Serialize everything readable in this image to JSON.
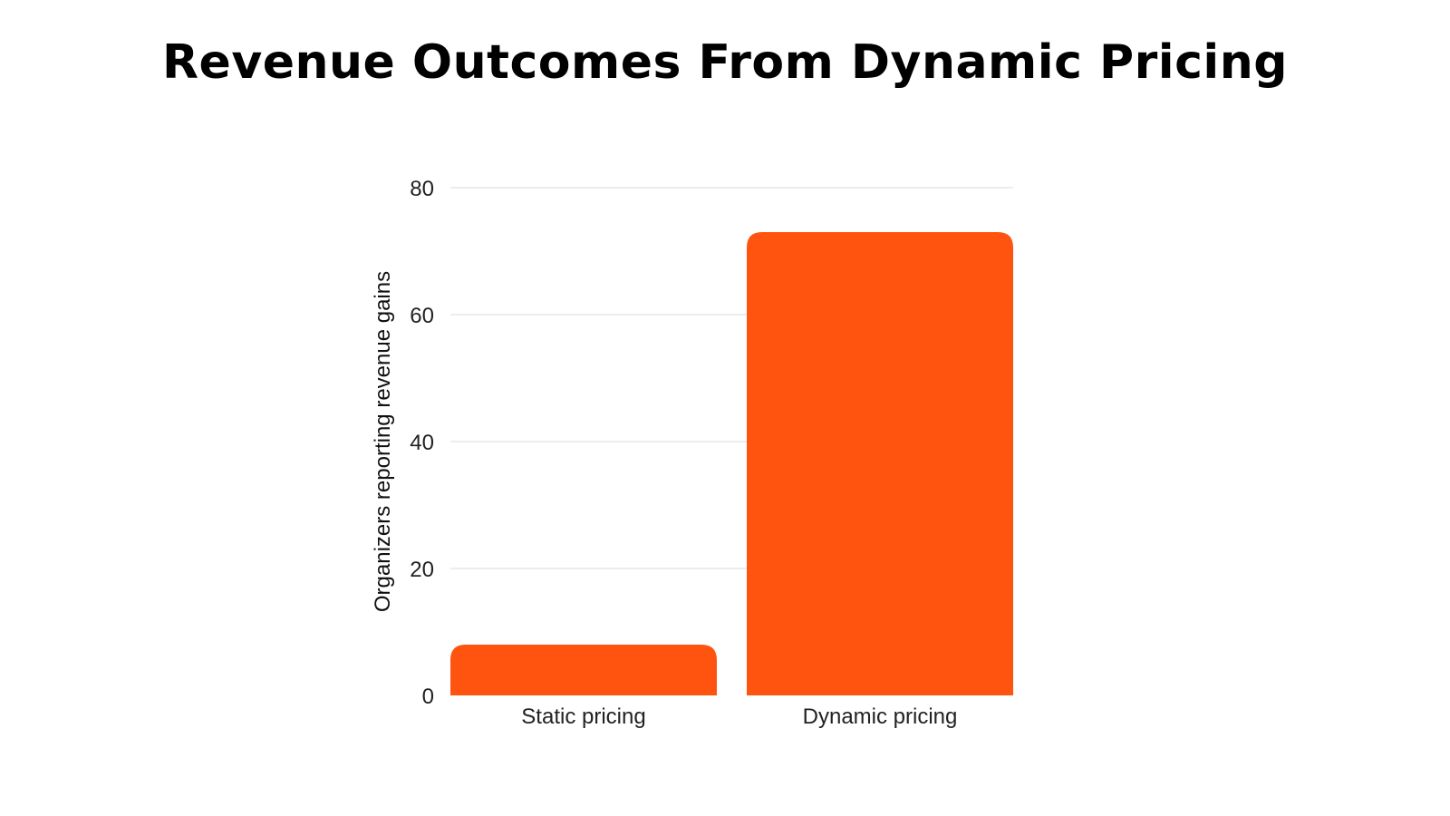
{
  "chart_data": {
    "type": "bar",
    "title": "Revenue Outcomes From Dynamic Pricing",
    "xlabel": "",
    "ylabel": "Organizers reporting revenue gains",
    "categories": [
      "Static pricing",
      "Dynamic pricing"
    ],
    "values": [
      8,
      73
    ],
    "ylim": [
      0,
      80
    ],
    "yticks": [
      0,
      20,
      40,
      60,
      80
    ],
    "grid": "horizontal",
    "legend": "none",
    "bar_color": "#FF5410",
    "grid_color": "#E2E2E2"
  }
}
